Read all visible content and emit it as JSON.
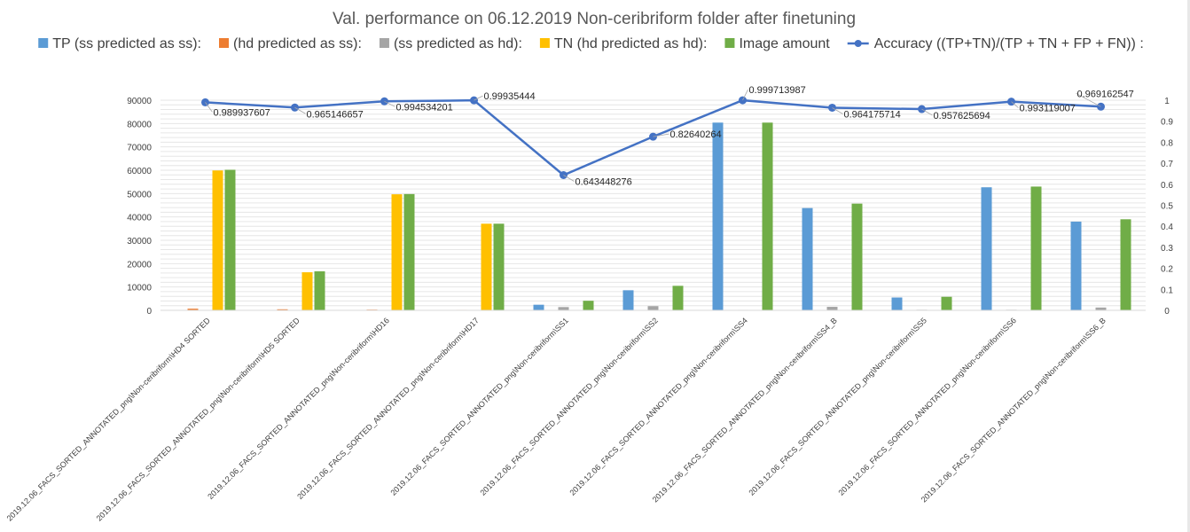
{
  "chart_data": {
    "type": "bar",
    "title": "Val. performance on  06.12.2019 Non-ceribriform folder after finetuning",
    "ylim": [
      0,
      90000
    ],
    "y2lim": [
      0,
      1
    ],
    "yticks": [
      "0",
      "10000",
      "20000",
      "30000",
      "40000",
      "50000",
      "60000",
      "70000",
      "80000",
      "90000"
    ],
    "y2ticks": [
      "0",
      "0.1",
      "0.2",
      "0.3",
      "0.4",
      "0.5",
      "0.6",
      "0.7",
      "0.8",
      "0.9",
      "1"
    ],
    "grid": true,
    "legend_position": "top",
    "categories": [
      "2019.12.06_FACS_SORTED_ANNOTATED_png\\Non-ceribriform\\HD4 SORTED",
      "2019.12.06_FACS_SORTED_ANNOTATED_png\\Non-ceribriform\\HD5 SORTED",
      "2019.12.06_FACS_SORTED_ANNOTATED_png\\Non-ceribriform\\HD16",
      "2019.12.06_FACS_SORTED_ANNOTATED_png\\Non-ceribriform\\HD17",
      "2019.12.06_FACS_SORTED_ANNOTATED_png\\Non-ceribriform\\SS1",
      "2019.12.06_FACS_SORTED_ANNOTATED_png\\Non-ceribriform\\SS2",
      "2019.12.06_FACS_SORTED_ANNOTATED_png\\Non-ceribriform\\SS4",
      "2019.12.06_FACS_SORTED_ANNOTATED_png\\Non-ceribriform\\SS4_B",
      "2019.12.06_FACS_SORTED_ANNOTATED_png\\Non-ceribriform\\SS5",
      "2019.12.06_FACS_SORTED_ANNOTATED_png\\Non-ceribriform\\SS6",
      "2019.12.06_FACS_SORTED_ANNOTATED_png\\Non-ceribriform\\SS6_B"
    ],
    "series": [
      {
        "name": "TP (ss predicted as ss):",
        "color": "#5b9bd5",
        "values": [
          0,
          0,
          0,
          0,
          2400,
          8600,
          80400,
          43800,
          5500,
          52700,
          38000
        ]
      },
      {
        "name": "(hd predicted as ss):",
        "color": "#ed7d31",
        "values": [
          700,
          450,
          300,
          200,
          0,
          0,
          0,
          0,
          0,
          0,
          0
        ]
      },
      {
        "name": "(ss predicted as hd):",
        "color": "#a5a5a5",
        "values": [
          0,
          0,
          0,
          0,
          1400,
          1800,
          200,
          1500,
          250,
          250,
          1200
        ]
      },
      {
        "name": "TN (hd predicted as hd):",
        "color": "#ffc000",
        "values": [
          59900,
          16300,
          49700,
          37100,
          0,
          0,
          0,
          0,
          0,
          0,
          0
        ]
      },
      {
        "name": "Image amount",
        "color": "#70ad47",
        "values": [
          60200,
          16700,
          49800,
          37100,
          4100,
          10500,
          80400,
          45700,
          5800,
          53000,
          39000
        ]
      }
    ],
    "line_series": {
      "name": "Accuracy ((TP+TN)/(TP + TN + FP + FN)) :",
      "color": "#4472c4",
      "values": [
        0.989937607,
        0.965146657,
        0.994534201,
        0.99935444,
        0.643448276,
        0.82640264,
        0.999713987,
        0.964175714,
        0.957625694,
        0.993119007,
        0.969162547
      ],
      "labels": [
        "0.989937607",
        "0.965146657",
        "0.994534201",
        "0.99935444",
        "0.643448276",
        "0.82640264",
        "0.999713987",
        "0.964175714",
        "0.957625694",
        "0.993119007",
        "0.969162547"
      ]
    }
  }
}
